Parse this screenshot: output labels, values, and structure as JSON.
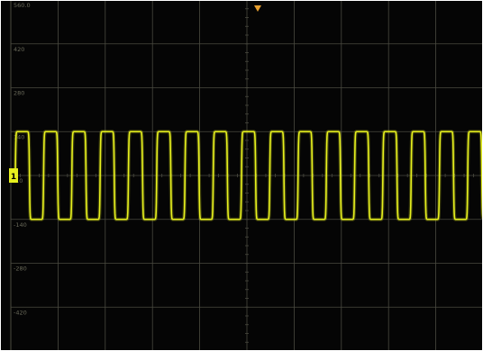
{
  "screen": {
    "background": "#050505",
    "grid_color": "#4a4a40",
    "trace_color": "#e6f01e",
    "trigger_color": "#e8a030",
    "frame_color": "#ffffff"
  },
  "grid": {
    "divisions_x": 10,
    "divisions_y": 8,
    "level_labels": [
      "560.0",
      "420",
      "280",
      "140",
      "0.0",
      "-140",
      "-280",
      "-420"
    ]
  },
  "channel_marker": {
    "label": "1"
  },
  "chart_data": {
    "type": "line",
    "series": [
      {
        "cycles_visible": 16.7,
        "high_level": 140,
        "low_level": -140
      }
    ],
    "ylim": [
      -560,
      560
    ]
  }
}
